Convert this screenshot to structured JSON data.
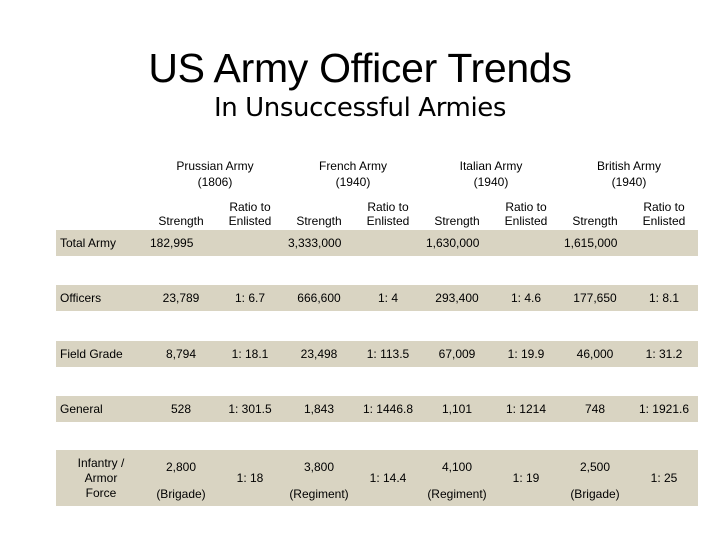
{
  "title": "US Army Officer Trends",
  "subtitle": "In Unsuccessful Armies",
  "armies": [
    {
      "name_line1": "Prussian Army",
      "name_line2": "(1806)"
    },
    {
      "name_line1": "French Army",
      "name_line2": "(1940)"
    },
    {
      "name_line1": "Italian Army",
      "name_line2": "(1940)"
    },
    {
      "name_line1": "British Army",
      "name_line2": "(1940)"
    }
  ],
  "sub_headers": {
    "strength": "Strength",
    "ratio_line1": "Ratio to",
    "ratio_line2": "Enlisted"
  },
  "rows": {
    "total": {
      "label": "Total Army",
      "values": [
        "182,995",
        "3,333,000",
        "1,630,000",
        "1,615,000"
      ]
    },
    "officers": {
      "label": "Officers",
      "values": [
        "23,789",
        "1: 6.7",
        "666,600",
        "1: 4",
        "293,400",
        "1: 4.6",
        "177,650",
        "1: 8.1"
      ]
    },
    "field_grade": {
      "label": "Field Grade",
      "values": [
        "8,794",
        "1: 18.1",
        "23,498",
        "1: 113.5",
        "67,009",
        "1: 19.9",
        "46,000",
        "1: 31.2"
      ]
    },
    "general": {
      "label": "General",
      "values": [
        "528",
        "1: 301.5",
        "1,843",
        "1: 1446.8",
        "1,101",
        "1: 1214",
        "748",
        "1: 1921.6"
      ]
    },
    "infantry": {
      "label_line1": "Infantry /",
      "label_line2": "Armor",
      "label_line3": "Force",
      "strengths": [
        "2,800",
        "3,800",
        "4,100",
        "2,500"
      ],
      "units": [
        "(Brigade)",
        "(Regiment)",
        "(Regiment)",
        "(Brigade)"
      ],
      "ratios": [
        "1: 18",
        "1: 14.4",
        "1: 19",
        "1: 25"
      ]
    }
  }
}
